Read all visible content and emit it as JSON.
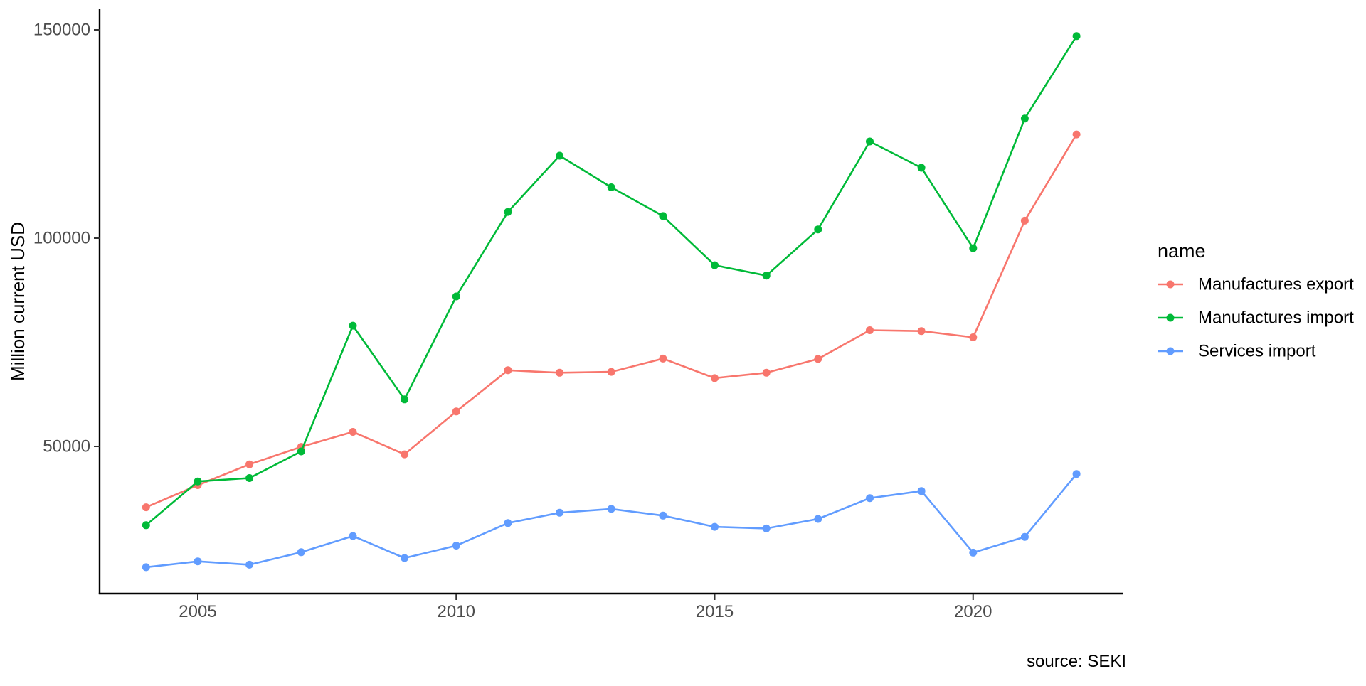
{
  "figure": {
    "background": "#FFFFFF",
    "axis_text_color": "#4D4D4D",
    "axis_line_color": "#000000"
  },
  "chart_data": {
    "type": "line",
    "title": "",
    "xlabel": "",
    "ylabel": "Million current USD",
    "x": [
      2004,
      2005,
      2006,
      2007,
      2008,
      2009,
      2010,
      2011,
      2012,
      2013,
      2014,
      2015,
      2016,
      2017,
      2018,
      2019,
      2020,
      2021,
      2022
    ],
    "series": [
      {
        "name": "Manufactures export",
        "color": "#F8766D",
        "values": [
          35400,
          40700,
          45700,
          49900,
          53500,
          48100,
          58400,
          68300,
          67700,
          67900,
          71100,
          66400,
          67700,
          71000,
          77900,
          77700,
          76200,
          104200,
          124900
        ]
      },
      {
        "name": "Manufactures import",
        "color": "#00BA38",
        "values": [
          31100,
          41600,
          42400,
          48800,
          79000,
          61300,
          86000,
          106300,
          119800,
          112200,
          105300,
          93500,
          91000,
          102100,
          123200,
          116900,
          97600,
          128700,
          148500
        ]
      },
      {
        "name": "Services import",
        "color": "#619CFF",
        "values": [
          21000,
          22400,
          21600,
          24600,
          28500,
          23200,
          26200,
          31600,
          34100,
          35000,
          33400,
          30700,
          30300,
          32600,
          37600,
          39300,
          24500,
          28300,
          43400
        ]
      }
    ],
    "yticks": [
      50000,
      100000,
      150000
    ],
    "ytick_labels": [
      "50000",
      "100000",
      "150000"
    ],
    "xticks": [
      2005,
      2010,
      2015,
      2020
    ],
    "xtick_labels": [
      "2005",
      "2010",
      "2015",
      "2020"
    ],
    "ylim": [
      14625,
      154875
    ],
    "xlim": [
      2003.1,
      2022.9
    ],
    "grid": false,
    "legend_title": "name",
    "legend_position": "right",
    "source_note": "source: SEKI"
  }
}
